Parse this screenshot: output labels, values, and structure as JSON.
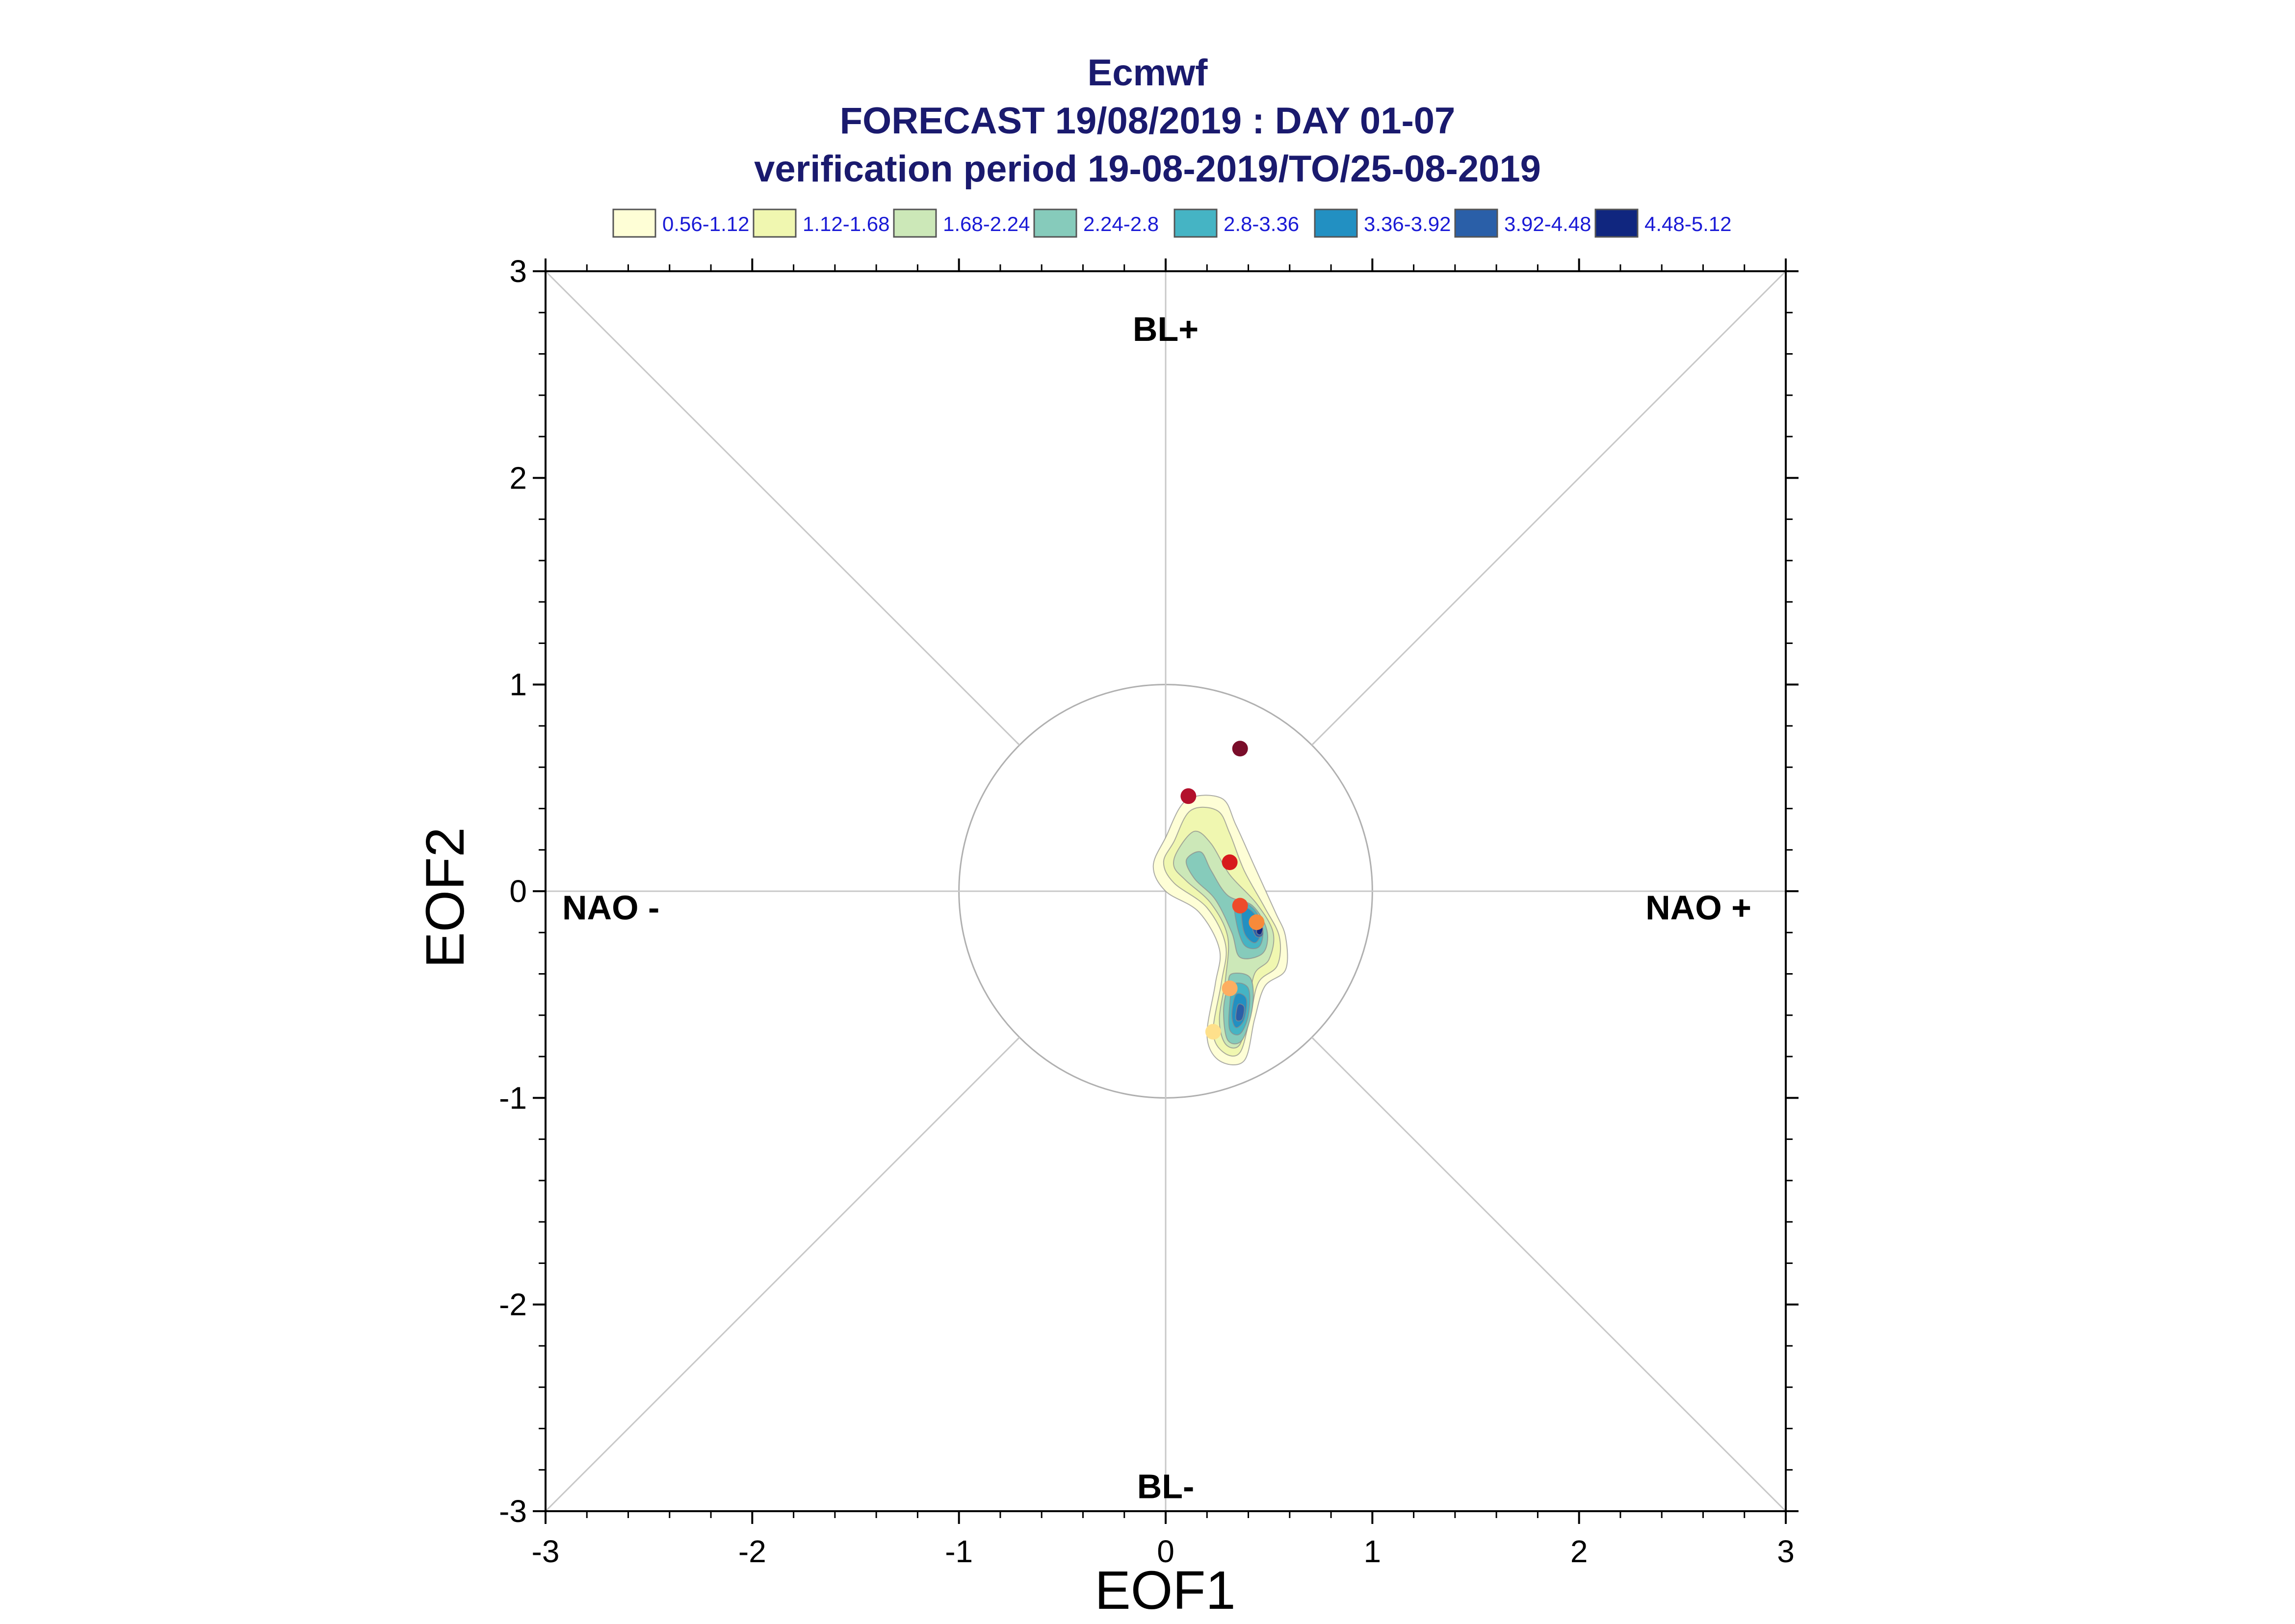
{
  "chart_data": {
    "type": "scatter",
    "title": "Ecmwf",
    "subtitle": "FORECAST 19/08/2019 : DAY 01-07",
    "subtitle2": "verification period 19-08-2019/TO/25-08-2019",
    "xlabel": "EOF1",
    "ylabel": "EOF2",
    "xlim": [
      -3,
      3
    ],
    "ylim": [
      -3,
      3
    ],
    "xticks": [
      -3,
      -2,
      -1,
      0,
      1,
      2,
      3
    ],
    "yticks": [
      -3,
      -2,
      -1,
      0,
      1,
      2,
      3
    ],
    "x_tick_labels": [
      "-3",
      "-2",
      "-1",
      "0",
      "1",
      "2",
      "3"
    ],
    "y_tick_labels": [
      "-3",
      "-2",
      "-1",
      "0",
      "1",
      "2",
      "3"
    ],
    "grid": false,
    "reference_circle_radius": 1,
    "regime_labels": [
      {
        "text": "BL+",
        "x": 0,
        "y": 2.72
      },
      {
        "text": "BL-",
        "x": 0,
        "y": -2.88
      },
      {
        "text": "NAO -",
        "x": -2.7,
        "y": -0.08
      },
      {
        "text": "NAO +",
        "x": 2.7,
        "y": -0.08
      }
    ],
    "legend": {
      "placement": "top",
      "entries": [
        {
          "label": "0.56-1.12",
          "color": "#fefed6"
        },
        {
          "label": "1.12-1.68",
          "color": "#f0f7b0"
        },
        {
          "label": "1.68-2.24",
          "color": "#cce8b8"
        },
        {
          "label": "2.24-2.8",
          "color": "#86cbbb"
        },
        {
          "label": "2.8-3.36",
          "color": "#45b4c4"
        },
        {
          "label": "3.36-3.92",
          "color": "#2290c2"
        },
        {
          "label": "3.92-4.48",
          "color": "#2a5fa8"
        },
        {
          "label": "4.48-5.12",
          "color": "#10267f"
        }
      ]
    },
    "density_regions": [
      {
        "level": 0,
        "points": [
          [
            0.0,
            0.26
          ],
          [
            0.1,
            0.44
          ],
          [
            0.27,
            0.45
          ],
          [
            0.34,
            0.32
          ],
          [
            0.43,
            0.12
          ],
          [
            0.53,
            -0.1
          ],
          [
            0.58,
            -0.22
          ],
          [
            0.58,
            -0.38
          ],
          [
            0.48,
            -0.46
          ],
          [
            0.43,
            -0.62
          ],
          [
            0.38,
            -0.82
          ],
          [
            0.26,
            -0.82
          ],
          [
            0.2,
            -0.7
          ],
          [
            0.24,
            -0.45
          ],
          [
            0.26,
            -0.28
          ],
          [
            0.16,
            -0.1
          ],
          [
            0.0,
            0.0
          ],
          [
            -0.06,
            0.12
          ]
        ]
      },
      {
        "level": 1,
        "points": [
          [
            0.04,
            0.24
          ],
          [
            0.12,
            0.39
          ],
          [
            0.25,
            0.39
          ],
          [
            0.31,
            0.28
          ],
          [
            0.38,
            0.1
          ],
          [
            0.48,
            -0.08
          ],
          [
            0.55,
            -0.22
          ],
          [
            0.54,
            -0.36
          ],
          [
            0.45,
            -0.44
          ],
          [
            0.41,
            -0.6
          ],
          [
            0.36,
            -0.78
          ],
          [
            0.28,
            -0.78
          ],
          [
            0.23,
            -0.68
          ],
          [
            0.27,
            -0.44
          ],
          [
            0.29,
            -0.26
          ],
          [
            0.2,
            -0.08
          ],
          [
            0.04,
            0.04
          ],
          [
            -0.01,
            0.14
          ]
        ]
      },
      {
        "level": 2,
        "points": [
          [
            0.06,
            0.2
          ],
          [
            0.14,
            0.29
          ],
          [
            0.22,
            0.23
          ],
          [
            0.31,
            0.08
          ],
          [
            0.44,
            -0.06
          ],
          [
            0.52,
            -0.2
          ],
          [
            0.5,
            -0.33
          ],
          [
            0.43,
            -0.4
          ],
          [
            0.4,
            -0.56
          ],
          [
            0.36,
            -0.74
          ],
          [
            0.29,
            -0.74
          ],
          [
            0.26,
            -0.62
          ],
          [
            0.29,
            -0.42
          ],
          [
            0.3,
            -0.22
          ],
          [
            0.22,
            -0.06
          ],
          [
            0.1,
            0.05
          ],
          [
            0.04,
            0.12
          ]
        ]
      },
      {
        "level": 3,
        "points": [
          [
            0.1,
            0.15
          ],
          [
            0.17,
            0.19
          ],
          [
            0.22,
            0.1
          ],
          [
            0.3,
            -0.02
          ],
          [
            0.42,
            -0.07
          ],
          [
            0.49,
            -0.19
          ],
          [
            0.47,
            -0.3
          ],
          [
            0.36,
            -0.32
          ],
          [
            0.32,
            -0.2
          ],
          [
            0.24,
            -0.04
          ],
          [
            0.14,
            0.06
          ]
        ]
      },
      {
        "level": 3,
        "points": [
          [
            0.32,
            -0.4
          ],
          [
            0.41,
            -0.42
          ],
          [
            0.42,
            -0.56
          ],
          [
            0.37,
            -0.72
          ],
          [
            0.3,
            -0.72
          ],
          [
            0.28,
            -0.58
          ],
          [
            0.3,
            -0.46
          ]
        ]
      },
      {
        "level": 4,
        "points": [
          [
            0.34,
            -0.04
          ],
          [
            0.43,
            -0.09
          ],
          [
            0.47,
            -0.19
          ],
          [
            0.45,
            -0.27
          ],
          [
            0.38,
            -0.26
          ],
          [
            0.34,
            -0.14
          ]
        ]
      },
      {
        "level": 4,
        "points": [
          [
            0.33,
            -0.45
          ],
          [
            0.4,
            -0.47
          ],
          [
            0.4,
            -0.6
          ],
          [
            0.36,
            -0.69
          ],
          [
            0.31,
            -0.67
          ],
          [
            0.31,
            -0.55
          ]
        ]
      },
      {
        "level": 5,
        "points": [
          [
            0.37,
            -0.08
          ],
          [
            0.43,
            -0.11
          ],
          [
            0.46,
            -0.2
          ],
          [
            0.43,
            -0.25
          ],
          [
            0.38,
            -0.2
          ]
        ]
      },
      {
        "level": 5,
        "points": [
          [
            0.34,
            -0.5
          ],
          [
            0.39,
            -0.52
          ],
          [
            0.38,
            -0.62
          ],
          [
            0.34,
            -0.66
          ],
          [
            0.32,
            -0.6
          ]
        ]
      },
      {
        "level": 6,
        "points": [
          [
            0.42,
            -0.13
          ],
          [
            0.46,
            -0.15
          ],
          [
            0.47,
            -0.21
          ],
          [
            0.44,
            -0.22
          ],
          [
            0.42,
            -0.18
          ]
        ]
      },
      {
        "level": 6,
        "points": [
          [
            0.35,
            -0.55
          ],
          [
            0.38,
            -0.56
          ],
          [
            0.37,
            -0.62
          ],
          [
            0.34,
            -0.62
          ]
        ]
      },
      {
        "level": 7,
        "points": [
          [
            0.45,
            -0.16
          ],
          [
            0.47,
            -0.18
          ],
          [
            0.46,
            -0.21
          ],
          [
            0.44,
            -0.2
          ]
        ]
      }
    ],
    "points": [
      {
        "x": 0.36,
        "y": 0.69,
        "color": "#7a0d2a"
      },
      {
        "x": 0.11,
        "y": 0.46,
        "color": "#b3102c"
      },
      {
        "x": 0.31,
        "y": 0.14,
        "color": "#d7191c"
      },
      {
        "x": 0.36,
        "y": -0.07,
        "color": "#ee4b2b"
      },
      {
        "x": 0.44,
        "y": -0.15,
        "color": "#f78a3a"
      },
      {
        "x": 0.31,
        "y": -0.47,
        "color": "#fdae61"
      },
      {
        "x": 0.23,
        "y": -0.68,
        "color": "#fee08b"
      }
    ]
  }
}
